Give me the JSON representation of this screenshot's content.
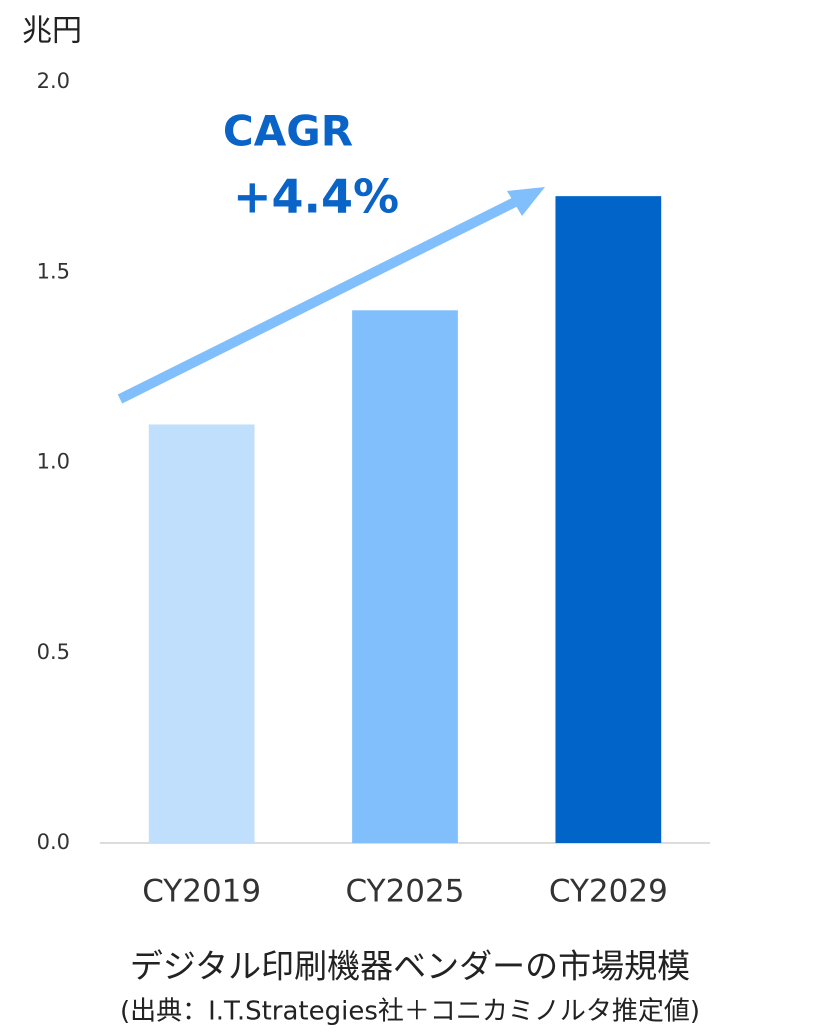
{
  "chart_data": {
    "type": "bar",
    "y_label": "兆円",
    "categories": [
      "CY2019",
      "CY2025",
      "CY2029"
    ],
    "values": [
      1.1,
      1.4,
      1.7
    ],
    "colors": [
      "#c0dffc",
      "#80bffc",
      "#0064c8"
    ],
    "ylim": [
      0,
      2
    ],
    "yticks": [
      {
        "value": 0,
        "label": "0.0"
      },
      {
        "value": 0.5,
        "label": "0.5"
      },
      {
        "value": 1,
        "label": "1.0"
      },
      {
        "value": 1.5,
        "label": "1.5"
      },
      {
        "value": 2,
        "label": "2.0"
      }
    ],
    "annotations": [
      "CAGR",
      "+4.4%"
    ],
    "caption": "デジタル印刷機器ベンダーの市場規模",
    "source": "(出典：I.T.Strategies社＋コニカミノルタ推定値)"
  }
}
